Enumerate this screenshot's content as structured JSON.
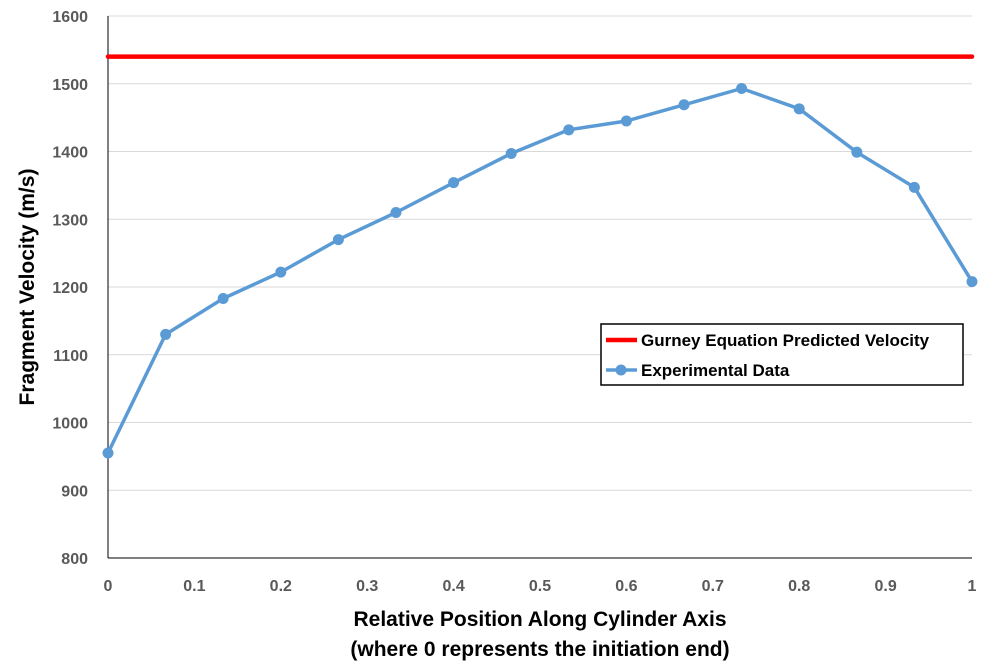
{
  "chart_data": {
    "type": "line",
    "title": "",
    "xlabel": "Relative Position Along Cylinder Axis",
    "xlabel_line2": "(where 0 represents the initiation end)",
    "ylabel": "Fragment Velocity (m/s)",
    "xlim": [
      0,
      1
    ],
    "ylim": [
      800,
      1600
    ],
    "xticks": [
      0,
      0.1,
      0.2,
      0.3,
      0.4,
      0.5,
      0.6,
      0.7,
      0.8,
      0.9,
      1
    ],
    "xtick_labels": [
      "0",
      "0.1",
      "0.2",
      "0.3",
      "0.4",
      "0.5",
      "0.6",
      "0.7",
      "0.8",
      "0.9",
      "1"
    ],
    "yticks": [
      800,
      900,
      1000,
      1100,
      1200,
      1300,
      1400,
      1500,
      1600
    ],
    "ytick_labels": [
      "800",
      "900",
      "1000",
      "1100",
      "1200",
      "1300",
      "1400",
      "1500",
      "1600"
    ],
    "grid": "horizontal",
    "legend_position": "right",
    "series": [
      {
        "name": "Gurney Equation Predicted Velocity",
        "color": "#ff0000",
        "marker": "none",
        "x": [
          0,
          1
        ],
        "y": [
          1540,
          1540
        ]
      },
      {
        "name": "Experimental Data",
        "color": "#5b9bd5",
        "marker": "circle",
        "x": [
          0,
          0.0667,
          0.1333,
          0.2,
          0.2667,
          0.3333,
          0.4,
          0.4667,
          0.5333,
          0.6,
          0.6667,
          0.7333,
          0.8,
          0.8667,
          0.9333,
          1
        ],
        "y": [
          955,
          1130,
          1183,
          1222,
          1270,
          1310,
          1354,
          1397,
          1432,
          1445,
          1469,
          1493,
          1463,
          1399,
          1347,
          1208
        ]
      }
    ]
  }
}
